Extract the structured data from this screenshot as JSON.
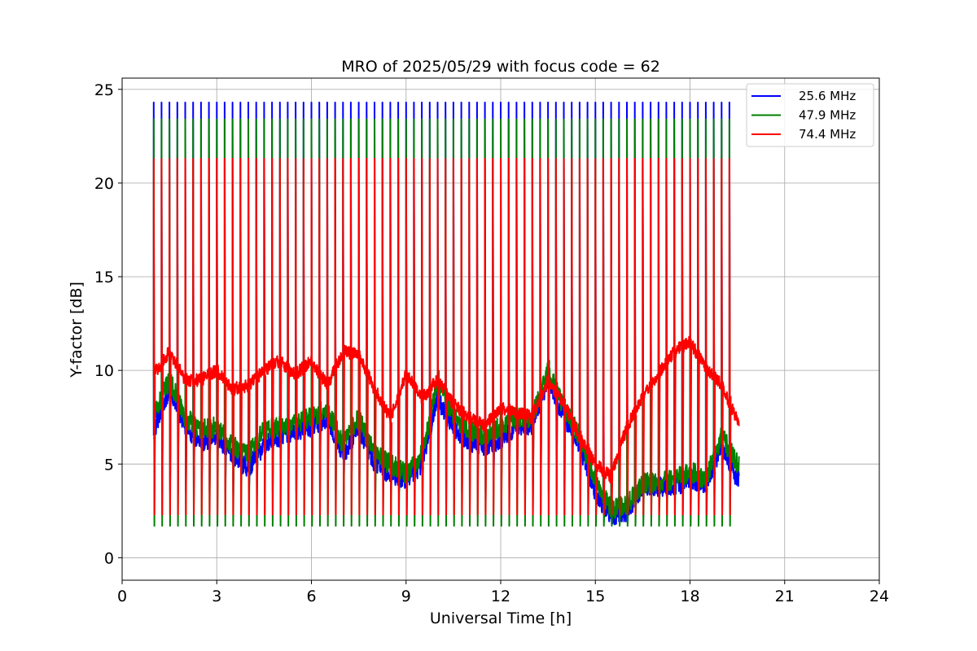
{
  "chart_data": {
    "type": "line",
    "title": "MRO of 2025/05/29 with focus code = 62",
    "xlabel": "Universal Time [h]",
    "ylabel": "Y-factor [dB]",
    "xlim": [
      0,
      24
    ],
    "ylim": [
      -1.2,
      25.6
    ],
    "xticks": [
      0,
      3,
      6,
      9,
      12,
      15,
      18,
      21,
      24
    ],
    "yticks": [
      0,
      5,
      10,
      15,
      20,
      25
    ],
    "grid": true,
    "legend_position": "top-right",
    "calibration_period_h": 0.25,
    "calibration_start_h": 1.0,
    "calibration_end_h": 19.3,
    "data_end_h": 19.55,
    "series": [
      {
        "name": "25.6 MHz",
        "color": "#0000ff",
        "spike_high": 24.3,
        "spike_low": 3.5,
        "baseline": {
          "x": [
            1.0,
            1.5,
            2.0,
            2.5,
            3.0,
            3.5,
            4.0,
            4.5,
            5.0,
            5.5,
            6.0,
            6.5,
            7.0,
            7.5,
            8.0,
            8.5,
            9.0,
            9.5,
            10.0,
            10.5,
            11.0,
            11.5,
            12.0,
            12.5,
            13.0,
            13.5,
            14.0,
            14.5,
            15.0,
            15.5,
            16.0,
            16.5,
            17.0,
            17.5,
            18.0,
            18.5,
            19.0,
            19.5
          ],
          "y": [
            6.8,
            9.0,
            7.0,
            6.2,
            6.5,
            5.5,
            4.8,
            6.0,
            6.5,
            6.8,
            7.0,
            7.5,
            5.5,
            7.0,
            5.0,
            4.5,
            4.2,
            5.0,
            8.5,
            7.0,
            6.2,
            6.0,
            6.3,
            7.0,
            7.0,
            9.5,
            7.5,
            6.0,
            3.5,
            2.2,
            2.5,
            3.8,
            3.8,
            3.8,
            4.2,
            4.0,
            6.0,
            4.2
          ]
        }
      },
      {
        "name": "47.9 MHz",
        "color": "#008000",
        "spike_high": 23.4,
        "spike_low": 1.7,
        "baseline": {
          "x": [
            1.0,
            1.5,
            2.0,
            2.5,
            3.0,
            3.5,
            4.0,
            4.5,
            5.0,
            5.5,
            6.0,
            6.5,
            7.0,
            7.5,
            8.0,
            8.5,
            9.0,
            9.5,
            10.0,
            10.5,
            11.0,
            11.5,
            12.0,
            12.5,
            13.0,
            13.5,
            14.0,
            14.5,
            15.0,
            15.5,
            16.0,
            16.5,
            17.0,
            17.5,
            18.0,
            18.5,
            19.0,
            19.5
          ],
          "y": [
            7.5,
            9.5,
            7.5,
            6.8,
            7.0,
            6.0,
            5.5,
            6.8,
            7.0,
            7.2,
            7.5,
            8.0,
            6.0,
            7.5,
            5.5,
            5.0,
            4.5,
            5.5,
            9.5,
            7.5,
            6.8,
            6.5,
            7.0,
            7.5,
            7.5,
            10.0,
            8.0,
            6.5,
            4.0,
            2.6,
            2.8,
            4.0,
            4.0,
            4.2,
            4.6,
            4.2,
            6.5,
            5.0
          ]
        }
      },
      {
        "name": "74.4 MHz",
        "color": "#ff0000",
        "spike_high": 21.3,
        "spike_low": 2.3,
        "baseline": {
          "x": [
            1.0,
            1.5,
            2.0,
            2.5,
            3.0,
            3.5,
            4.0,
            4.5,
            5.0,
            5.5,
            6.0,
            6.5,
            7.0,
            7.5,
            8.0,
            8.5,
            9.0,
            9.5,
            10.0,
            10.5,
            11.0,
            11.5,
            12.0,
            12.5,
            13.0,
            13.5,
            14.0,
            14.5,
            15.0,
            15.5,
            16.0,
            16.5,
            17.0,
            17.5,
            18.0,
            18.5,
            19.0,
            19.5
          ],
          "y": [
            9.8,
            11.0,
            9.5,
            9.5,
            10.0,
            9.0,
            9.2,
            10.0,
            10.5,
            9.8,
            10.5,
            9.2,
            11.0,
            10.8,
            9.0,
            7.5,
            9.8,
            8.5,
            9.5,
            8.2,
            7.5,
            7.0,
            8.0,
            7.8,
            7.5,
            9.5,
            8.2,
            6.5,
            5.0,
            4.3,
            7.0,
            8.5,
            9.8,
            11.0,
            11.5,
            10.2,
            9.2,
            7.3
          ]
        }
      }
    ]
  }
}
